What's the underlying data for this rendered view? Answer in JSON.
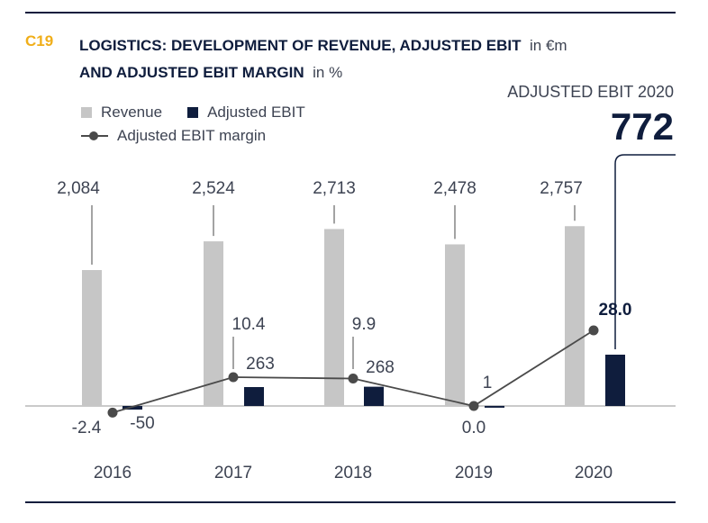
{
  "figure": {
    "id": "C19",
    "title_line1": "LOGISTICS: DEVELOPMENT OF REVENUE, ADJUSTED EBIT",
    "title_unit1": "in €m",
    "title_line2": "AND ADJUSTED EBIT MARGIN",
    "title_unit2": "in %"
  },
  "callout": {
    "label": "ADJUSTED EBIT 2020",
    "value": "772"
  },
  "colors": {
    "revenue": "#c6c6c6",
    "ebit": "#0f1d3d",
    "margin": "#4a4a4a",
    "accent": "#f0ae19"
  },
  "chart_data": {
    "type": "bar",
    "categories": [
      "2016",
      "2017",
      "2018",
      "2019",
      "2020"
    ],
    "series": [
      {
        "name": "Revenue",
        "type": "bar",
        "values": [
          2084,
          2524,
          2713,
          2478,
          2757
        ],
        "labels": [
          "2,084",
          "2,524",
          "2,713",
          "2,478",
          "2,757"
        ]
      },
      {
        "name": "Adjusted EBIT",
        "type": "bar",
        "values": [
          -50,
          263,
          268,
          1,
          772
        ],
        "labels": [
          "-50",
          "263",
          "268",
          "1",
          ""
        ]
      },
      {
        "name": "Adjusted EBIT margin",
        "type": "line",
        "values": [
          -2.4,
          10.4,
          9.9,
          0.0,
          28.0
        ],
        "labels": [
          "-2.4",
          "10.4",
          "9.9",
          "0.0",
          "28.0"
        ]
      }
    ],
    "legend_position": "top-left",
    "grid": false
  }
}
